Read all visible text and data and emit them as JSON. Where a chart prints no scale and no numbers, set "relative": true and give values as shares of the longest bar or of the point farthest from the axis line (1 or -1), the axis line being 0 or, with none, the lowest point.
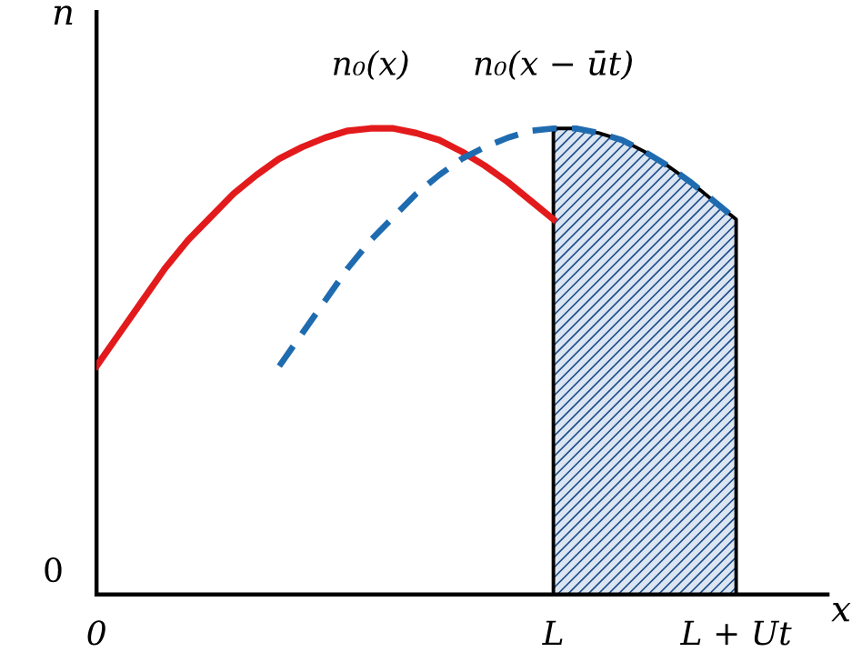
{
  "chart_data": {
    "type": "line",
    "relative": true,
    "xlabel": "x",
    "ylabel": "n",
    "categories": [
      "0",
      null,
      null,
      null,
      null,
      null,
      null,
      null,
      null,
      null,
      null,
      null,
      null,
      null,
      null,
      null,
      null,
      null,
      null,
      null,
      "L",
      null,
      null,
      null,
      null,
      null,
      null,
      null,
      "L + Ut",
      null,
      null,
      null,
      null
    ],
    "series": [
      {
        "name": "n₀(x)",
        "color": "#e31a1c",
        "line_style": "solid",
        "values": [
          0.49,
          0.56,
          0.63,
          0.7,
          0.76,
          0.81,
          0.86,
          0.9,
          0.935,
          0.96,
          0.98,
          0.995,
          1.0,
          1.0,
          0.99,
          0.975,
          0.95,
          0.92,
          0.885,
          0.845,
          0.805,
          null,
          null,
          null,
          null,
          null,
          null,
          null,
          null,
          null,
          null,
          null,
          null
        ]
      },
      {
        "name": "n₀(x − ūt)",
        "color": "#1f6bb0",
        "line_style": "dashed",
        "values": [
          null,
          null,
          null,
          null,
          null,
          null,
          null,
          null,
          0.49,
          0.56,
          0.63,
          0.7,
          0.76,
          0.81,
          0.86,
          0.9,
          0.935,
          0.96,
          0.98,
          0.995,
          1.0,
          1.0,
          0.99,
          0.975,
          0.95,
          0.92,
          0.885,
          0.845,
          0.805,
          null,
          null,
          null,
          null
        ]
      },
      {
        "type": "area",
        "color": "#1f4e8c",
        "values": [
          null,
          null,
          null,
          null,
          null,
          null,
          null,
          null,
          null,
          null,
          null,
          null,
          null,
          null,
          null,
          null,
          null,
          null,
          null,
          null,
          1.0,
          1.0,
          0.99,
          0.975,
          0.95,
          0.92,
          0.885,
          0.845,
          0.805,
          null,
          null,
          null,
          null
        ]
      }
    ],
    "annotations": [
      "0"
    ],
    "grid": false,
    "legend": false
  }
}
